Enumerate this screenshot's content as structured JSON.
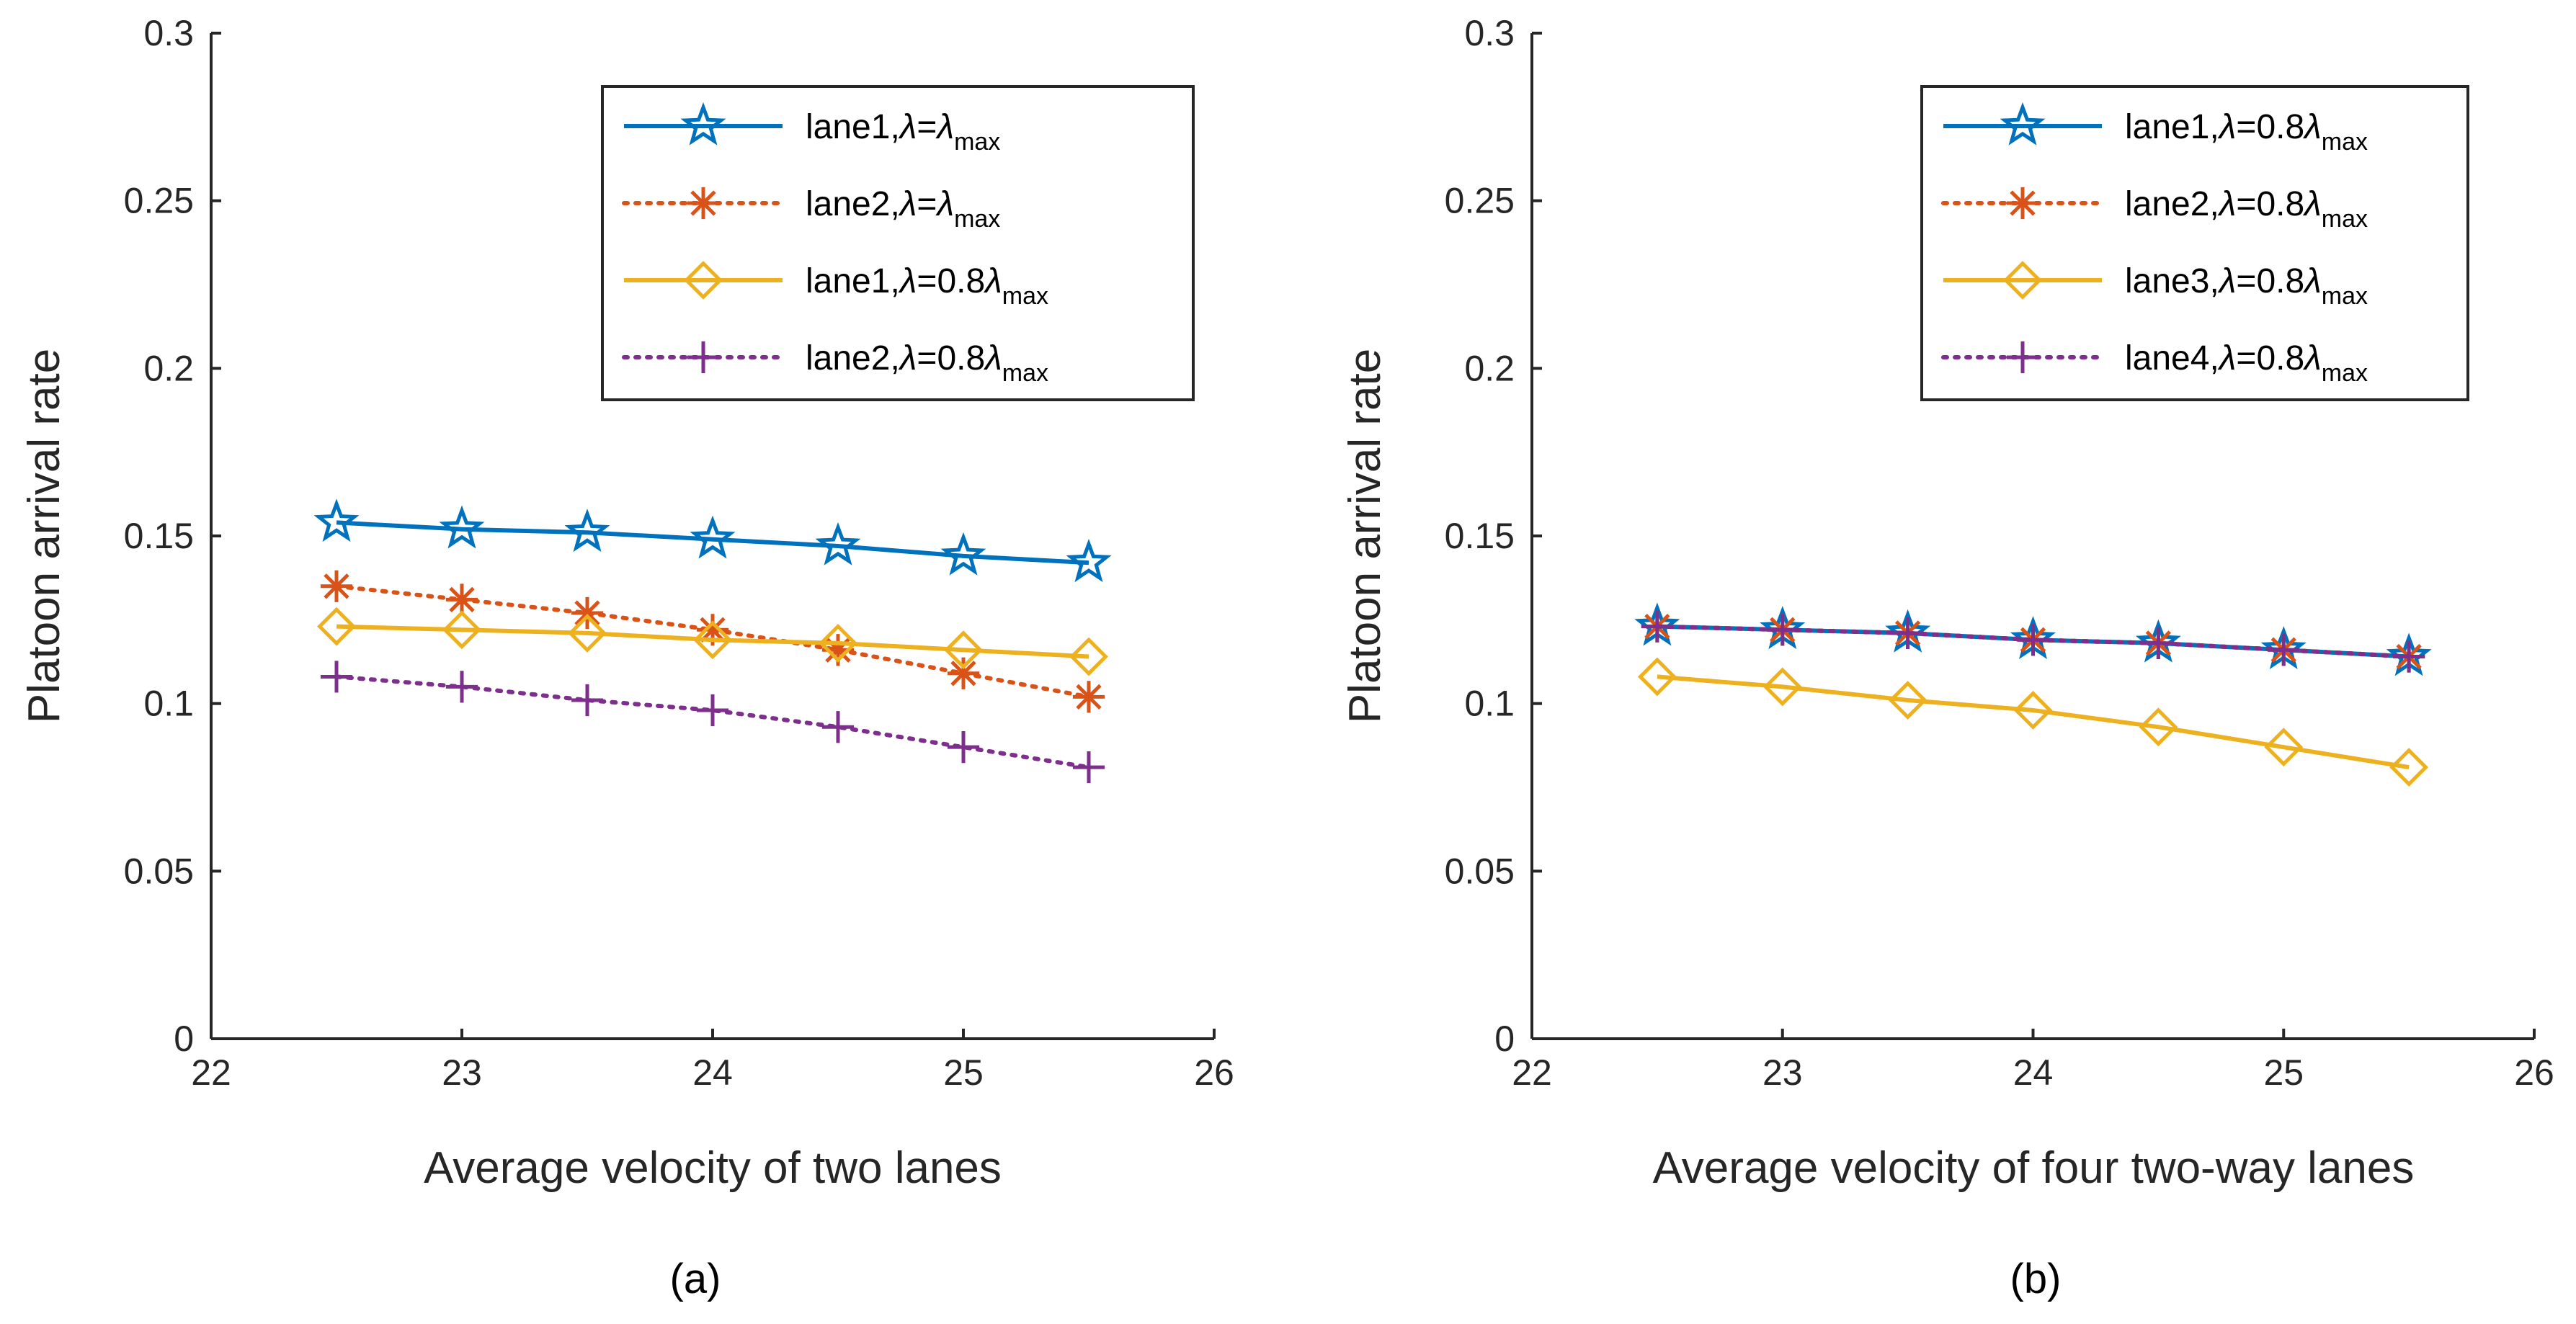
{
  "chart_data": [
    {
      "type": "line",
      "caption": "(a)",
      "xlabel": "Average velocity of two lanes",
      "ylabel": "Platoon arrival rate",
      "xlim": [
        22,
        26
      ],
      "ylim": [
        0,
        0.3
      ],
      "xticks": [
        "22",
        "23",
        "24",
        "25",
        "26"
      ],
      "yticks": [
        "0",
        "0.05",
        "0.1",
        "0.15",
        "0.2",
        "0.25",
        "0.3"
      ],
      "x": [
        22.5,
        23,
        23.5,
        24,
        24.5,
        25,
        25.5
      ],
      "legend_position": "top-right",
      "series": [
        {
          "name": "lane1",
          "lambda_eq": "=",
          "lambda_coef": "",
          "lambda_sub": "max",
          "color": "#0072BD",
          "dash": "solid",
          "marker": "star",
          "values": [
            0.154,
            0.152,
            0.151,
            0.149,
            0.147,
            0.144,
            0.142
          ]
        },
        {
          "name": "lane2",
          "lambda_eq": "=",
          "lambda_coef": "",
          "lambda_sub": "max",
          "color": "#D95319",
          "dash": "dotted",
          "marker": "asterisk",
          "values": [
            0.135,
            0.131,
            0.127,
            0.122,
            0.116,
            0.109,
            0.102
          ]
        },
        {
          "name": "lane1",
          "lambda_eq": "=",
          "lambda_coef": "0.8",
          "lambda_sub": "max",
          "color": "#EDB120",
          "dash": "solid",
          "marker": "diamond",
          "values": [
            0.123,
            0.122,
            0.121,
            0.119,
            0.118,
            0.116,
            0.114
          ]
        },
        {
          "name": "lane2",
          "lambda_eq": "=",
          "lambda_coef": "0.8",
          "lambda_sub": "max",
          "color": "#7E2F8E",
          "dash": "dotted",
          "marker": "plus",
          "values": [
            0.108,
            0.105,
            0.101,
            0.098,
            0.093,
            0.087,
            0.081
          ]
        }
      ]
    },
    {
      "type": "line",
      "caption": "(b)",
      "xlabel": "Average velocity of four two-way lanes",
      "ylabel": "Platoon arrival rate",
      "xlim": [
        22,
        26
      ],
      "ylim": [
        0,
        0.3
      ],
      "xticks": [
        "22",
        "23",
        "24",
        "25",
        "26"
      ],
      "yticks": [
        "0",
        "0.05",
        "0.1",
        "0.15",
        "0.2",
        "0.25",
        "0.3"
      ],
      "x": [
        22.5,
        23,
        23.5,
        24,
        24.5,
        25,
        25.5
      ],
      "legend_position": "top-right",
      "series": [
        {
          "name": "lane1",
          "lambda_eq": "=",
          "lambda_coef": "0.8",
          "lambda_sub": "max",
          "color": "#0072BD",
          "dash": "solid",
          "marker": "star",
          "values": [
            0.123,
            0.122,
            0.121,
            0.119,
            0.118,
            0.116,
            0.114
          ]
        },
        {
          "name": "lane2",
          "lambda_eq": "=",
          "lambda_coef": "0.8",
          "lambda_sub": "max",
          "color": "#D95319",
          "dash": "dotted",
          "marker": "asterisk",
          "values": [
            0.123,
            0.122,
            0.121,
            0.119,
            0.118,
            0.116,
            0.114
          ]
        },
        {
          "name": "lane3",
          "lambda_eq": "=",
          "lambda_coef": "0.8",
          "lambda_sub": "max",
          "color": "#EDB120",
          "dash": "solid",
          "marker": "diamond",
          "values": [
            0.108,
            0.105,
            0.101,
            0.098,
            0.093,
            0.087,
            0.081
          ]
        },
        {
          "name": "lane4",
          "lambda_eq": "=",
          "lambda_coef": "0.8",
          "lambda_sub": "max",
          "color": "#7E2F8E",
          "dash": "dotted",
          "marker": "plus",
          "values": [
            0.123,
            0.122,
            0.121,
            0.119,
            0.118,
            0.116,
            0.114
          ]
        }
      ]
    }
  ]
}
